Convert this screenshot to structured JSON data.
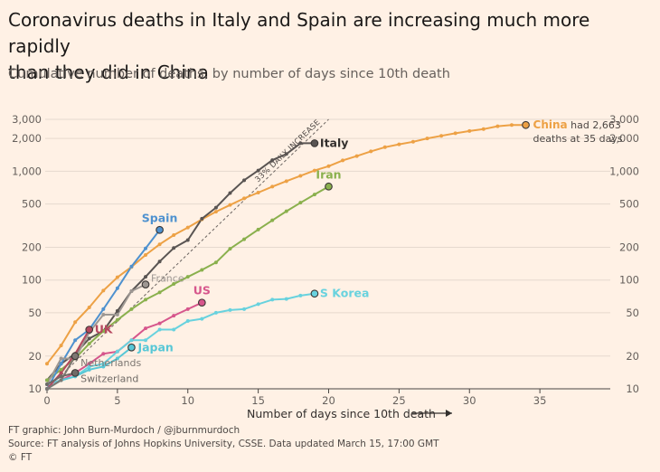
{
  "header": {
    "title_line1": "Coronavirus deaths in Italy and Spain are increasing much more rapidly",
    "title_line2": "than they did in China",
    "subtitle": "Cumulative number of deaths, by number of days since 10th death"
  },
  "footer": {
    "credit": "FT graphic: John Burn-Murdoch / @jburnmurdoch",
    "source": "Source: FT analysis of Johns Hopkins University, CSSE. Data updated March 15, 17:00 GMT",
    "copyright": "© FT"
  },
  "chart_data": {
    "type": "line",
    "scale": "log",
    "title": "Coronavirus deaths in Italy and Spain are increasing much more rapidly than they did in China",
    "subtitle": "Cumulative number of deaths, by number of days since 10th death",
    "xlabel": "Number of days since 10th death",
    "ylabel": "",
    "xlim": [
      0,
      40
    ],
    "ylim": [
      10,
      3000
    ],
    "x_ticks": [
      0,
      5,
      10,
      15,
      20,
      25,
      30,
      35
    ],
    "x_tick_labels": [
      "0",
      "5",
      "10",
      "15",
      "20",
      "25",
      "30",
      "35"
    ],
    "y_ticks": [
      10,
      20,
      50,
      100,
      200,
      500,
      1000,
      2000,
      3000
    ],
    "y_tick_labels": [
      "10",
      "20",
      "50",
      "100",
      "200",
      "500",
      "1,000",
      "2,000",
      "3,000"
    ],
    "reference_line": {
      "label": "33% DAILY INCREASE",
      "start_value": 10,
      "daily_growth": 1.33,
      "x_range": [
        0,
        20
      ]
    },
    "annotations": {
      "china_bold": "China",
      "china_rest": "had 2,663",
      "china_line2": "deaths at 35 days"
    },
    "series": [
      {
        "name": "China",
        "label": "China",
        "color": "#eda145",
        "label_pos": "right",
        "label_weight": "bold",
        "x": [
          0,
          1,
          2,
          3,
          4,
          5,
          6,
          7,
          8,
          9,
          10,
          11,
          12,
          13,
          14,
          15,
          16,
          17,
          18,
          19,
          20,
          21,
          22,
          23,
          24,
          25,
          26,
          27,
          28,
          29,
          30,
          31,
          32,
          33,
          34
        ],
        "values": [
          17,
          25,
          41,
          56,
          80,
          106,
          132,
          170,
          213,
          259,
          304,
          361,
          425,
          490,
          563,
          637,
          722,
          811,
          908,
          1016,
          1113,
          1259,
          1380,
          1523,
          1665,
          1770,
          1868,
          2004,
          2118,
          2236,
          2345,
          2442,
          2592,
          2663,
          2663
        ]
      },
      {
        "name": "Italy",
        "label": "Italy",
        "color": "#595452",
        "label_pos": "right",
        "label_weight": "bold",
        "x": [
          0,
          1,
          2,
          3,
          4,
          5,
          6,
          7,
          8,
          9,
          10,
          11,
          12,
          13,
          14,
          15,
          16,
          17,
          18,
          19
        ],
        "values": [
          12,
          17,
          21,
          29,
          34,
          52,
          79,
          107,
          148,
          197,
          233,
          366,
          463,
          631,
          827,
          1016,
          1266,
          1441,
          1809,
          1809
        ]
      },
      {
        "name": "Iran",
        "label": "Iran",
        "color": "#8ab04d",
        "label_pos": "above",
        "label_weight": "bold",
        "x": [
          0,
          1,
          2,
          3,
          4,
          5,
          6,
          7,
          8,
          9,
          10,
          11,
          12,
          13,
          14,
          15,
          16,
          17,
          18,
          19,
          20
        ],
        "values": [
          12,
          15,
          19,
          26,
          34,
          43,
          54,
          66,
          77,
          92,
          107,
          124,
          145,
          194,
          237,
          291,
          354,
          429,
          514,
          611,
          724
        ]
      },
      {
        "name": "Spain",
        "label": "Spain",
        "color": "#4e91cf",
        "label_pos": "above",
        "label_weight": "bold",
        "x": [
          0,
          1,
          2,
          3,
          4,
          5,
          6,
          7,
          8
        ],
        "values": [
          10,
          17,
          28,
          35,
          54,
          84,
          133,
          195,
          289
        ]
      },
      {
        "name": "France",
        "label": "France",
        "color": "#9e9893",
        "label_pos": "right",
        "label_weight": "normal",
        "x": [
          0,
          1,
          2,
          3,
          4,
          5,
          6,
          7
        ],
        "values": [
          11,
          19,
          19,
          33,
          48,
          48,
          79,
          91
        ]
      },
      {
        "name": "US",
        "label": "US",
        "color": "#d6568c",
        "label_pos": "above",
        "label_weight": "bold",
        "x": [
          0,
          1,
          2,
          3,
          4,
          5,
          6,
          7,
          8,
          9,
          10,
          11
        ],
        "values": [
          11,
          12,
          14,
          17,
          21,
          22,
          28,
          36,
          40,
          47,
          54,
          62
        ]
      },
      {
        "name": "S Korea",
        "label": "S Korea",
        "color": "#68d2de",
        "label_pos": "right",
        "label_weight": "bold",
        "x": [
          0,
          1,
          2,
          3,
          4,
          5,
          6,
          7,
          8,
          9,
          10,
          11,
          12,
          13,
          14,
          15,
          16,
          17,
          18,
          19
        ],
        "values": [
          11,
          12,
          13,
          16,
          17,
          22,
          28,
          28,
          35,
          35,
          42,
          44,
          50,
          53,
          54,
          60,
          66,
          67,
          72,
          75
        ]
      },
      {
        "name": "UK",
        "label": "UK",
        "color": "#b5475f",
        "label_pos": "right",
        "label_weight": "bold",
        "x": [
          0,
          1,
          2,
          3
        ],
        "values": [
          10,
          14,
          21,
          35
        ]
      },
      {
        "name": "Japan",
        "label": "Japan",
        "color": "#57c7d6",
        "label_pos": "right",
        "label_weight": "bold",
        "x": [
          0,
          1,
          2,
          3,
          4,
          5,
          6
        ],
        "values": [
          10,
          12,
          13,
          15,
          16,
          19,
          24
        ]
      },
      {
        "name": "Netherlands",
        "label": "Netherlands",
        "color": "#7d7772",
        "label_pos": "right",
        "label_weight": "normal",
        "x": [
          0,
          1,
          2
        ],
        "values": [
          10,
          12,
          20
        ]
      },
      {
        "name": "Switzerland",
        "label": "Switzerland",
        "color": "#6f6a66",
        "label_pos": "right",
        "label_weight": "normal",
        "x": [
          0,
          1,
          2
        ],
        "values": [
          11,
          13,
          14
        ]
      }
    ]
  }
}
